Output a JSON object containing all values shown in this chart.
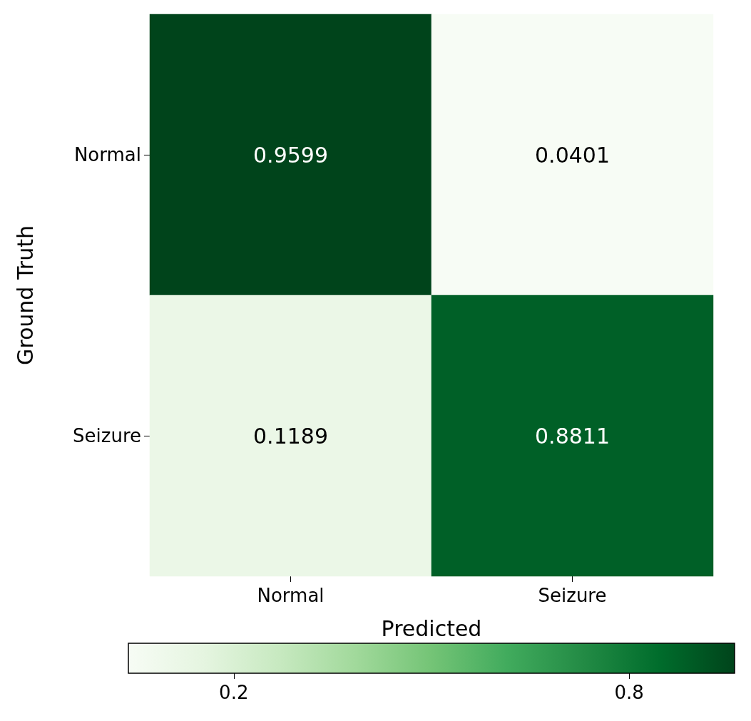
{
  "chart_data": {
    "type": "heatmap",
    "xlabel": "Predicted",
    "ylabel": "Ground Truth",
    "categories": [
      "Normal",
      "Seizure"
    ],
    "y_categories": [
      "Normal",
      "Seizure"
    ],
    "cells": [
      [
        0.9599,
        0.0401
      ],
      [
        0.1189,
        0.8811
      ]
    ],
    "clim": [
      0.0401,
      0.9599
    ],
    "cticks": [
      0.2,
      0.8
    ],
    "data_labels": true
  }
}
